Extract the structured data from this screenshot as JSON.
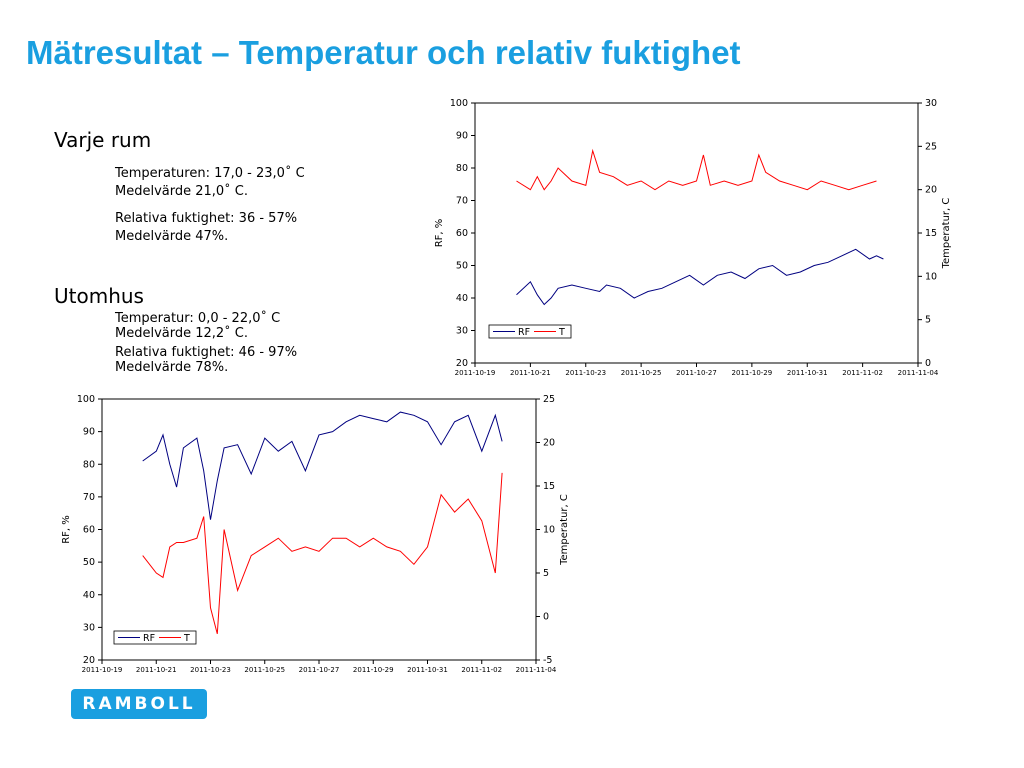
{
  "title": "Mätresultat – Temperatur och relativ fuktighet",
  "indoor": {
    "heading": "Varje rum",
    "temp_range": "Temperaturen: 17,0 - 23,0˚ C",
    "temp_mean": "Medelvärde 21,0˚ C.",
    "rh_range": "Relativa fuktighet: 36 - 57%",
    "rh_mean": "Medelvärde 47%."
  },
  "outdoor": {
    "heading": "Utomhus",
    "temp_range": "Temperatur: 0,0 - 22,0˚ C",
    "temp_mean": "Medelvärde 12,2˚ C.",
    "rh_range": "Relativa fuktighet: 46 - 97%",
    "rh_mean": "Medelvärde 78%."
  },
  "logo_text": "RAMBOLL",
  "colors": {
    "title": "#1a9fe0",
    "rf": "#000080",
    "t": "#ff0000",
    "logo_bg": "#1a9fe0"
  },
  "chart_data": [
    {
      "type": "line",
      "x_type": "date",
      "xlim": [
        "2011-10-19",
        "2011-11-04"
      ],
      "x_ticks": [
        "2011-10-19",
        "2011-10-21",
        "2011-10-23",
        "2011-10-25",
        "2011-10-27",
        "2011-10-29",
        "2011-10-31",
        "2011-11-02",
        "2011-11-04"
      ],
      "ylabel": "RF, %",
      "ylim": [
        20,
        100
      ],
      "y_ticks": [
        20,
        30,
        40,
        50,
        60,
        70,
        80,
        90,
        100
      ],
      "y2label": "Temperatur, C",
      "y2lim": [
        0,
        30
      ],
      "y2_ticks": [
        0,
        5,
        10,
        15,
        20,
        25,
        30
      ],
      "legend_position": "bottom-left",
      "series": [
        {
          "name": "RF",
          "axis": "left",
          "color": "#000080",
          "x": [
            "2011-10-20 12:00",
            "2011-10-21 00:00",
            "2011-10-21 06:00",
            "2011-10-21 12:00",
            "2011-10-21 18:00",
            "2011-10-22 00:00",
            "2011-10-22 12:00",
            "2011-10-23 00:00",
            "2011-10-23 12:00",
            "2011-10-23 18:00",
            "2011-10-24 06:00",
            "2011-10-24 18:00",
            "2011-10-25 06:00",
            "2011-10-25 18:00",
            "2011-10-26 06:00",
            "2011-10-26 18:00",
            "2011-10-27 06:00",
            "2011-10-27 18:00",
            "2011-10-28 06:00",
            "2011-10-28 18:00",
            "2011-10-29 06:00",
            "2011-10-29 18:00",
            "2011-10-30 06:00",
            "2011-10-30 18:00",
            "2011-10-31 06:00",
            "2011-10-31 18:00",
            "2011-11-01 06:00",
            "2011-11-01 18:00",
            "2011-11-02 06:00",
            "2011-11-02 12:00",
            "2011-11-02 18:00"
          ],
          "y": [
            41,
            45,
            41,
            38,
            40,
            43,
            44,
            43,
            42,
            44,
            43,
            40,
            42,
            43,
            45,
            47,
            44,
            47,
            48,
            46,
            49,
            50,
            47,
            48,
            50,
            51,
            53,
            55,
            52,
            53,
            52
          ]
        },
        {
          "name": "T",
          "axis": "right",
          "color": "#ff0000",
          "x": [
            "2011-10-20 12:00",
            "2011-10-21 00:00",
            "2011-10-21 06:00",
            "2011-10-21 12:00",
            "2011-10-21 18:00",
            "2011-10-22 00:00",
            "2011-10-22 12:00",
            "2011-10-23 00:00",
            "2011-10-23 06:00",
            "2011-10-23 12:00",
            "2011-10-24 00:00",
            "2011-10-24 12:00",
            "2011-10-25 00:00",
            "2011-10-25 12:00",
            "2011-10-26 00:00",
            "2011-10-26 12:00",
            "2011-10-27 00:00",
            "2011-10-27 06:00",
            "2011-10-27 12:00",
            "2011-10-28 00:00",
            "2011-10-28 12:00",
            "2011-10-29 00:00",
            "2011-10-29 06:00",
            "2011-10-29 12:00",
            "2011-10-30 00:00",
            "2011-10-30 12:00",
            "2011-10-31 00:00",
            "2011-10-31 12:00",
            "2011-11-01 00:00",
            "2011-11-01 12:00",
            "2011-11-02 00:00",
            "2011-11-02 12:00"
          ],
          "y": [
            21,
            20,
            21.5,
            20,
            21,
            22.5,
            21,
            20.5,
            24.5,
            22,
            21.5,
            20.5,
            21,
            20,
            21,
            20.5,
            21,
            24,
            20.5,
            21,
            20.5,
            21,
            24,
            22,
            21,
            20.5,
            20,
            21,
            20.5,
            20,
            20.5,
            21
          ]
        }
      ]
    },
    {
      "type": "line",
      "x_type": "date",
      "xlim": [
        "2011-10-19",
        "2011-11-04"
      ],
      "x_ticks": [
        "2011-10-19",
        "2011-10-21",
        "2011-10-23",
        "2011-10-25",
        "2011-10-27",
        "2011-10-29",
        "2011-10-31",
        "2011-11-02",
        "2011-11-04"
      ],
      "ylabel": "RF, %",
      "ylim": [
        20,
        100
      ],
      "y_ticks": [
        20,
        30,
        40,
        50,
        60,
        70,
        80,
        90,
        100
      ],
      "y2label": "Temperatur, C",
      "y2lim": [
        -5,
        25
      ],
      "y2_ticks": [
        -5,
        0,
        5,
        10,
        15,
        20,
        25
      ],
      "legend_position": "bottom-left",
      "series": [
        {
          "name": "RF",
          "axis": "left",
          "color": "#000080",
          "x": [
            "2011-10-20 12:00",
            "2011-10-21 00:00",
            "2011-10-21 06:00",
            "2011-10-21 12:00",
            "2011-10-21 18:00",
            "2011-10-22 00:00",
            "2011-10-22 12:00",
            "2011-10-22 18:00",
            "2011-10-23 00:00",
            "2011-10-23 06:00",
            "2011-10-23 12:00",
            "2011-10-24 00:00",
            "2011-10-24 12:00",
            "2011-10-25 00:00",
            "2011-10-25 12:00",
            "2011-10-26 00:00",
            "2011-10-26 12:00",
            "2011-10-27 00:00",
            "2011-10-27 12:00",
            "2011-10-28 00:00",
            "2011-10-28 12:00",
            "2011-10-29 00:00",
            "2011-10-29 12:00",
            "2011-10-30 00:00",
            "2011-10-30 12:00",
            "2011-10-31 00:00",
            "2011-10-31 12:00",
            "2011-11-01 00:00",
            "2011-11-01 12:00",
            "2011-11-02 00:00",
            "2011-11-02 12:00",
            "2011-11-02 18:00"
          ],
          "y": [
            81,
            84,
            89,
            80,
            73,
            85,
            88,
            78,
            63,
            75,
            85,
            86,
            77,
            88,
            84,
            87,
            78,
            89,
            90,
            93,
            95,
            94,
            93,
            96,
            95,
            93,
            86,
            93,
            95,
            84,
            95,
            87
          ]
        },
        {
          "name": "T",
          "axis": "right",
          "color": "#ff0000",
          "x": [
            "2011-10-20 12:00",
            "2011-10-21 00:00",
            "2011-10-21 06:00",
            "2011-10-21 12:00",
            "2011-10-21 18:00",
            "2011-10-22 00:00",
            "2011-10-22 12:00",
            "2011-10-22 18:00",
            "2011-10-23 00:00",
            "2011-10-23 06:00",
            "2011-10-23 12:00",
            "2011-10-24 00:00",
            "2011-10-24 12:00",
            "2011-10-25 00:00",
            "2011-10-25 12:00",
            "2011-10-26 00:00",
            "2011-10-26 12:00",
            "2011-10-27 00:00",
            "2011-10-27 12:00",
            "2011-10-28 00:00",
            "2011-10-28 12:00",
            "2011-10-29 00:00",
            "2011-10-29 12:00",
            "2011-10-30 00:00",
            "2011-10-30 12:00",
            "2011-10-31 00:00",
            "2011-10-31 12:00",
            "2011-11-01 00:00",
            "2011-11-01 12:00",
            "2011-11-02 00:00",
            "2011-11-02 12:00",
            "2011-11-02 18:00"
          ],
          "y": [
            7,
            5,
            4.5,
            8,
            8.5,
            8.5,
            9,
            11.5,
            1,
            -2,
            10,
            3,
            7,
            8,
            9,
            7.5,
            8,
            7.5,
            9,
            9,
            8,
            9,
            8,
            7.5,
            6,
            8,
            14,
            12,
            13.5,
            11,
            5,
            16.5
          ]
        }
      ]
    }
  ]
}
